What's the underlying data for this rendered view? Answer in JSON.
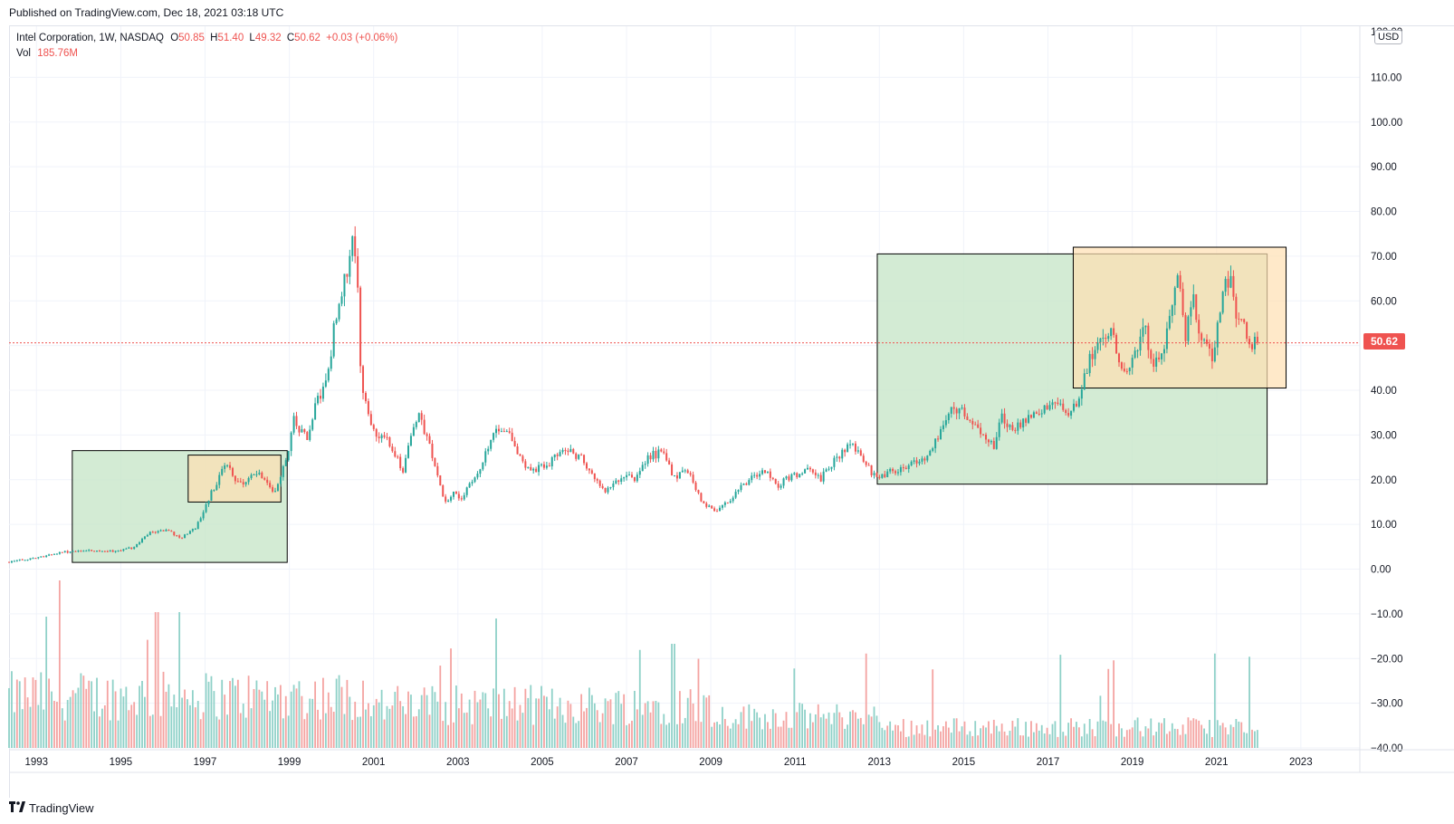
{
  "header": {
    "published": "Published on TradingView.com, Dec 18, 2021 03:18 UTC"
  },
  "legend": {
    "symbol": "Intel Corporation, 1W, NASDAQ",
    "open_label": "O",
    "open": "50.85",
    "high_label": "H",
    "high": "51.40",
    "low_label": "L",
    "low": "49.32",
    "close_label": "C",
    "close": "50.62",
    "change": "+0.03 (+0.06%)",
    "vol_label": "Vol",
    "vol": "185.76M"
  },
  "axis": {
    "currency": "USD",
    "last_price": "50.62",
    "top_tick_partial": "120.00"
  },
  "footer": {
    "brand": "TradingView"
  },
  "colors": {
    "up": "#26a69a",
    "down": "#ef5350",
    "up_volume": "#8fd1c8",
    "down_volume": "#f4a3a1",
    "grid": "#f0f3fa",
    "green_box": "#c8e6c9",
    "orange_box": "#ffe0b2",
    "last_price_line": "#ef5350"
  },
  "chart_data": {
    "type": "candlestick",
    "title": "Intel Corporation, 1W, NASDAQ",
    "x_axis": {
      "ticks": [
        "1993",
        "1995",
        "1997",
        "1999",
        "2001",
        "2003",
        "2005",
        "2007",
        "2009",
        "2011",
        "2013",
        "2015",
        "2017",
        "2019",
        "2021",
        "2023"
      ],
      "range": [
        1992.35,
        2024.4
      ]
    },
    "y_axis": {
      "ticks": [
        "110.00",
        "100.00",
        "90.00",
        "80.00",
        "70.00",
        "60.00",
        "50.00",
        "40.00",
        "30.00",
        "20.00",
        "10.00",
        "0.00",
        "−10.00",
        "−20.00",
        "−30.00",
        "−40.00"
      ],
      "range": [
        -40,
        120
      ]
    },
    "price_anchors": [
      {
        "t": 1992.35,
        "p": 1.6
      },
      {
        "t": 1993.0,
        "p": 2.5
      },
      {
        "t": 1993.5,
        "p": 3.6
      },
      {
        "t": 1994.0,
        "p": 4.2
      },
      {
        "t": 1994.8,
        "p": 4.0
      },
      {
        "t": 1995.3,
        "p": 4.8
      },
      {
        "t": 1995.7,
        "p": 8.2
      },
      {
        "t": 1996.1,
        "p": 8.8
      },
      {
        "t": 1996.4,
        "p": 6.8
      },
      {
        "t": 1996.8,
        "p": 9.5
      },
      {
        "t": 1997.0,
        "p": 14.0
      },
      {
        "t": 1997.2,
        "p": 18.0
      },
      {
        "t": 1997.5,
        "p": 24.0
      },
      {
        "t": 1997.7,
        "p": 20.0
      },
      {
        "t": 1998.0,
        "p": 19.5
      },
      {
        "t": 1998.3,
        "p": 22.0
      },
      {
        "t": 1998.6,
        "p": 17.0
      },
      {
        "t": 1998.8,
        "p": 20.5
      },
      {
        "t": 1999.0,
        "p": 28.0
      },
      {
        "t": 1999.1,
        "p": 34.0
      },
      {
        "t": 1999.4,
        "p": 29.0
      },
      {
        "t": 1999.7,
        "p": 39.0
      },
      {
        "t": 1999.9,
        "p": 42.0
      },
      {
        "t": 2000.0,
        "p": 50.0
      },
      {
        "t": 2000.2,
        "p": 62.0
      },
      {
        "t": 2000.35,
        "p": 66.0
      },
      {
        "t": 2000.5,
        "p": 72.0
      },
      {
        "t": 2000.6,
        "p": 70.0
      },
      {
        "t": 2000.7,
        "p": 42.0
      },
      {
        "t": 2000.9,
        "p": 34.0
      },
      {
        "t": 2001.1,
        "p": 30.0
      },
      {
        "t": 2001.4,
        "p": 28.0
      },
      {
        "t": 2001.7,
        "p": 22.0
      },
      {
        "t": 2001.9,
        "p": 31.0
      },
      {
        "t": 2002.1,
        "p": 34.0
      },
      {
        "t": 2002.4,
        "p": 25.0
      },
      {
        "t": 2002.7,
        "p": 15.0
      },
      {
        "t": 2002.9,
        "p": 17.0
      },
      {
        "t": 2003.1,
        "p": 16.0
      },
      {
        "t": 2003.5,
        "p": 22.0
      },
      {
        "t": 2003.9,
        "p": 32.0
      },
      {
        "t": 2004.1,
        "p": 32.0
      },
      {
        "t": 2004.5,
        "p": 24.0
      },
      {
        "t": 2004.8,
        "p": 22.0
      },
      {
        "t": 2005.2,
        "p": 24.0
      },
      {
        "t": 2005.5,
        "p": 27.0
      },
      {
        "t": 2005.9,
        "p": 25.0
      },
      {
        "t": 2006.2,
        "p": 21.0
      },
      {
        "t": 2006.5,
        "p": 17.0
      },
      {
        "t": 2006.9,
        "p": 21.0
      },
      {
        "t": 2007.2,
        "p": 20.0
      },
      {
        "t": 2007.5,
        "p": 25.0
      },
      {
        "t": 2007.9,
        "p": 26.5
      },
      {
        "t": 2008.1,
        "p": 20.0
      },
      {
        "t": 2008.4,
        "p": 23.0
      },
      {
        "t": 2008.8,
        "p": 15.0
      },
      {
        "t": 2009.1,
        "p": 13.0
      },
      {
        "t": 2009.5,
        "p": 16.0
      },
      {
        "t": 2009.9,
        "p": 20.0
      },
      {
        "t": 2010.3,
        "p": 22.0
      },
      {
        "t": 2010.6,
        "p": 18.5
      },
      {
        "t": 2010.9,
        "p": 21.0
      },
      {
        "t": 2011.3,
        "p": 22.0
      },
      {
        "t": 2011.6,
        "p": 20.0
      },
      {
        "t": 2011.9,
        "p": 24.0
      },
      {
        "t": 2012.3,
        "p": 28.0
      },
      {
        "t": 2012.6,
        "p": 25.0
      },
      {
        "t": 2012.9,
        "p": 20.5
      },
      {
        "t": 2013.3,
        "p": 22.0
      },
      {
        "t": 2013.7,
        "p": 23.5
      },
      {
        "t": 2014.1,
        "p": 25.0
      },
      {
        "t": 2014.4,
        "p": 30.0
      },
      {
        "t": 2014.6,
        "p": 34.5
      },
      {
        "t": 2014.9,
        "p": 36.0
      },
      {
        "t": 2015.2,
        "p": 32.0
      },
      {
        "t": 2015.5,
        "p": 30.0
      },
      {
        "t": 2015.7,
        "p": 27.0
      },
      {
        "t": 2015.9,
        "p": 34.0
      },
      {
        "t": 2016.2,
        "p": 31.0
      },
      {
        "t": 2016.5,
        "p": 33.0
      },
      {
        "t": 2016.8,
        "p": 36.0
      },
      {
        "t": 2017.2,
        "p": 36.5
      },
      {
        "t": 2017.5,
        "p": 34.0
      },
      {
        "t": 2017.7,
        "p": 37.0
      },
      {
        "t": 2017.9,
        "p": 45.0
      },
      {
        "t": 2018.2,
        "p": 51.0
      },
      {
        "t": 2018.5,
        "p": 53.0
      },
      {
        "t": 2018.8,
        "p": 45.0
      },
      {
        "t": 2019.0,
        "p": 47.0
      },
      {
        "t": 2019.3,
        "p": 55.0
      },
      {
        "t": 2019.45,
        "p": 45.0
      },
      {
        "t": 2019.7,
        "p": 48.0
      },
      {
        "t": 2019.9,
        "p": 58.0
      },
      {
        "t": 2020.1,
        "p": 67.0
      },
      {
        "t": 2020.25,
        "p": 52.0
      },
      {
        "t": 2020.45,
        "p": 62.0
      },
      {
        "t": 2020.6,
        "p": 52.0
      },
      {
        "t": 2020.75,
        "p": 50.0
      },
      {
        "t": 2020.9,
        "p": 47.0
      },
      {
        "t": 2021.1,
        "p": 60.0
      },
      {
        "t": 2021.3,
        "p": 66.0
      },
      {
        "t": 2021.5,
        "p": 56.0
      },
      {
        "t": 2021.7,
        "p": 54.0
      },
      {
        "t": 2021.85,
        "p": 50.0
      },
      {
        "t": 2021.97,
        "p": 50.62
      }
    ],
    "candles": {
      "start": 1992.35,
      "end": 2021.97,
      "count": 470
    },
    "annotations": {
      "last_price": 50.62,
      "boxes": [
        {
          "fill": "green",
          "t0": 1993.85,
          "t1": 1998.95,
          "p0": 1.5,
          "p1": 26.5
        },
        {
          "fill": "orange",
          "t0": 1996.6,
          "t1": 1998.8,
          "p0": 15.0,
          "p1": 25.5
        },
        {
          "fill": "green",
          "t0": 2012.95,
          "t1": 2022.2,
          "p0": 19.0,
          "p1": 70.5
        },
        {
          "fill": "orange",
          "t0": 2017.6,
          "t1": 2022.65,
          "p0": 40.5,
          "p1": 72.0
        }
      ]
    },
    "volume_bounds": {
      "min": 10,
      "max": 335
    },
    "volume": {
      "series": "weekly",
      "latest": "185.76M"
    }
  }
}
